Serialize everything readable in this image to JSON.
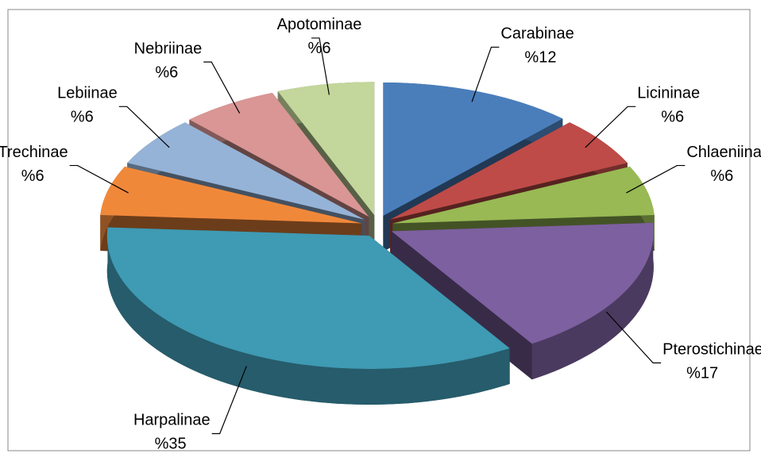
{
  "chart_data": {
    "type": "pie",
    "categories": [
      "Carabinae",
      "Licininae",
      "Chlaeniinae",
      "Pterostichinae",
      "Harpalinae",
      "Trechinae",
      "Lebiinae",
      "Nebriinae",
      "Apotominae"
    ],
    "values": [
      12,
      6,
      6,
      17,
      35,
      6,
      6,
      6,
      6
    ],
    "value_labels": [
      "%12",
      "%6",
      "%6",
      "%17",
      "%35",
      "%6",
      "%6",
      "%6",
      "%6"
    ],
    "colors": [
      "#4a7ebb",
      "#be4b48",
      "#98b954",
      "#7d60a0",
      "#3f9ab3",
      "#f0883a",
      "#95b3d7",
      "#d99694",
      "#c3d69b"
    ]
  }
}
